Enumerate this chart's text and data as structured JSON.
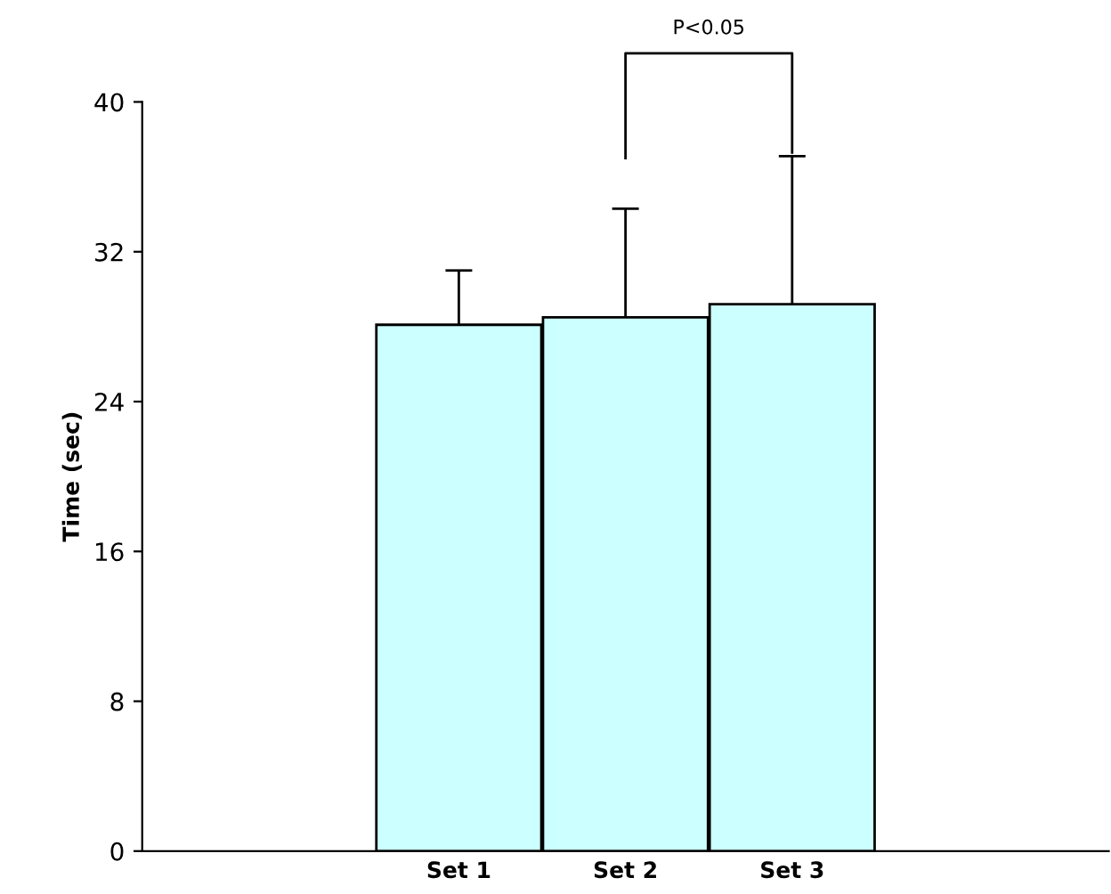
{
  "chart_data": {
    "type": "bar",
    "ylabel": "Time (sec)",
    "categories": [
      "Set 1",
      "Set 2",
      "Set 3"
    ],
    "values": [
      28.1,
      28.5,
      29.2
    ],
    "errors": [
      [
        28.1,
        31.0
      ],
      [
        28.5,
        34.3
      ],
      [
        29.2,
        37.1
      ]
    ],
    "color": "#ccffff",
    "ylim": [
      0,
      40
    ],
    "yticks": [
      0,
      8,
      16,
      24,
      32,
      40
    ],
    "grid": false,
    "annotations": [
      "P<0.05"
    ]
  }
}
